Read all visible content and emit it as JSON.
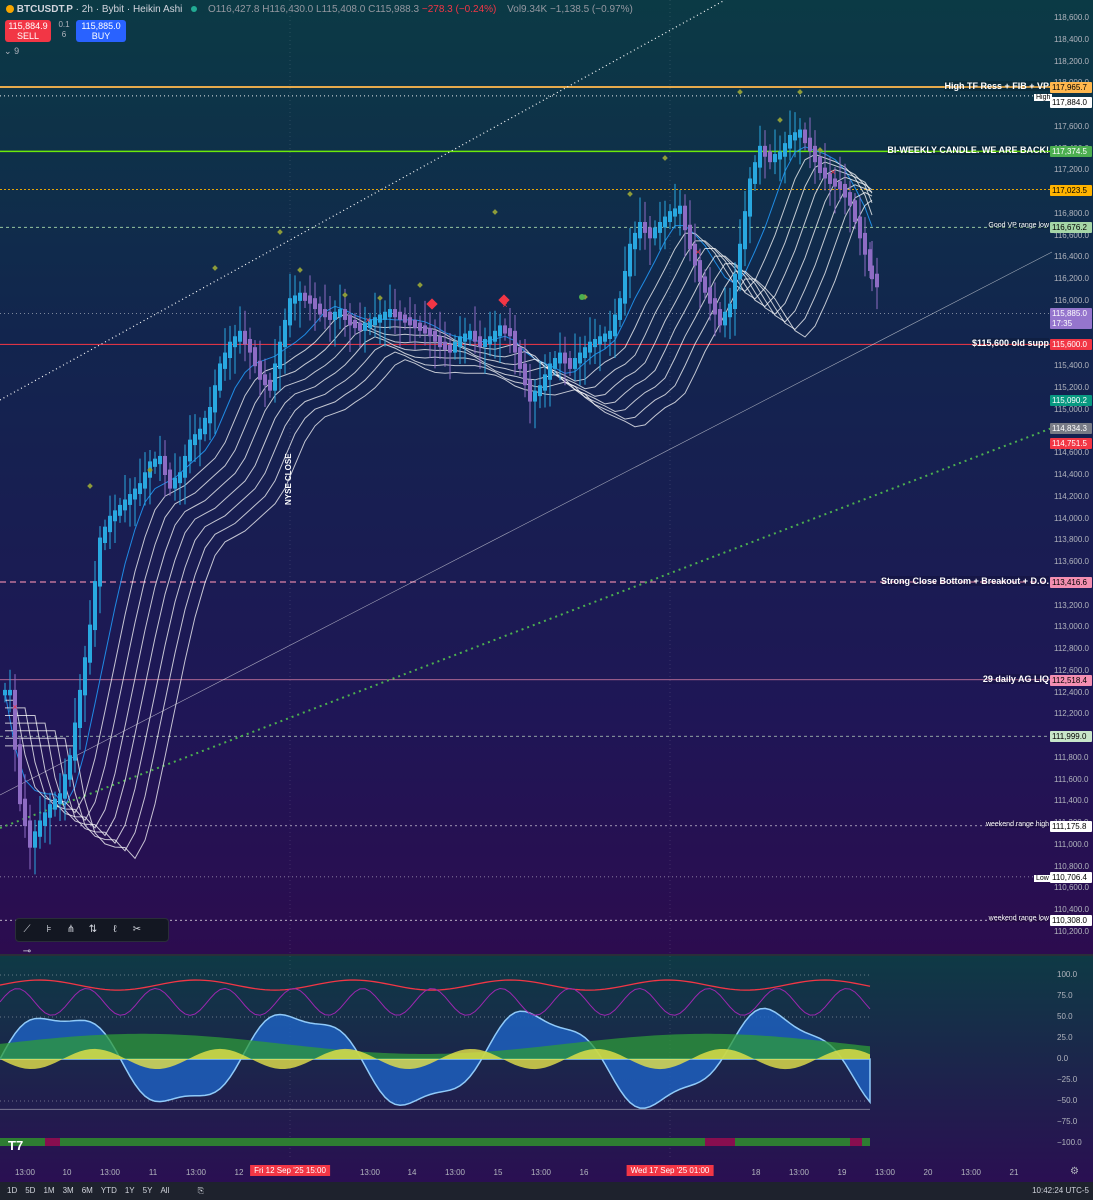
{
  "header": {
    "symbol": "BTCUSDT.P",
    "interval": "2h",
    "exchange": "Bybit",
    "chart_style": "Heikin Ashi",
    "ohlc_text": "O116,427.8 H116,430.0 L115,408.0 C115,988.3",
    "change_text": "−278.3 (−0.24%)",
    "volume_text": "Vol9.34K −1,138.5 (−0.97%)"
  },
  "trade": {
    "sell_price": "115,884.9",
    "sell_label": "SELL",
    "buy_price": "115,885.0",
    "buy_label": "BUY",
    "spread_top": "0.1",
    "spread_bottom": "6",
    "indicator_count": "9"
  },
  "price_axis": [
    "118,600.0",
    "118,400.0",
    "118,200.0",
    "118,000.0",
    "117,600.0",
    "117,400.0",
    "117,200.0",
    "116,800.0",
    "116,400.0",
    "116,200.0",
    "116,000.0",
    "115,400.0",
    "115,200.0",
    "114,600.0",
    "114,400.0",
    "114,200.0",
    "114,000.0",
    "113,800.0",
    "113,600.0",
    "113,200.0",
    "113,000.0",
    "112,800.0",
    "112,600.0",
    "112,400.0",
    "112,200.0",
    "111,800.0",
    "111,600.0",
    "111,400.0",
    "111,200.0",
    "111,000.0",
    "110,800.0",
    "110,600.0",
    "110,400.0",
    "110,200.0",
    "115,000.0",
    "116,600.0"
  ],
  "price_tags": [
    {
      "value": "117,965.7",
      "color": "#ffb74d",
      "text_color": "#000"
    },
    {
      "value": "117,884.0",
      "color": "#ffffff",
      "text_color": "#000"
    },
    {
      "value": "117,374.5",
      "color": "#4caf50",
      "text_color": "#fff"
    },
    {
      "value": "117,023.5",
      "color": "#ffb300",
      "text_color": "#000"
    },
    {
      "value": "116,676.2",
      "color": "#a5d6a7",
      "text_color": "#000"
    },
    {
      "value": "115,885.0",
      "color": "#9575cd",
      "text_color": "#fff"
    },
    {
      "value": "17:35",
      "color": "#9575cd",
      "text_color": "#fff"
    },
    {
      "value": "115,600.0",
      "color": "#f23645",
      "text_color": "#fff"
    },
    {
      "value": "115,090.2",
      "color": "#089981",
      "text_color": "#fff"
    },
    {
      "value": "114,834.3",
      "color": "#787b86",
      "text_color": "#fff"
    },
    {
      "value": "114,751.5",
      "color": "#f23645",
      "text_color": "#fff"
    },
    {
      "value": "113,416.6",
      "color": "#f48fb1",
      "text_color": "#000"
    },
    {
      "value": "112,518.4",
      "color": "#f48fb1",
      "text_color": "#000"
    },
    {
      "value": "111,999.0",
      "color": "#c8e6c9",
      "text_color": "#000"
    },
    {
      "value": "111,175.8",
      "color": "#ffffff",
      "text_color": "#000"
    },
    {
      "value": "110,706.4",
      "color": "#ffffff",
      "text_color": "#000"
    },
    {
      "value": "110,308.0",
      "color": "#ffffff",
      "text_color": "#000"
    }
  ],
  "high_label": "High",
  "low_label": "Low",
  "annotations": [
    {
      "text": "High TF Ress + FIB + VP",
      "small": false
    },
    {
      "text": "BI-WEEKLY CANDLE. WE ARE BACK!",
      "small": false
    },
    {
      "text": "Good VP range low",
      "small": true
    },
    {
      "text": "$115,600 old supp",
      "small": false
    },
    {
      "text": "Strong Close Bottom + Breakout + D.O.",
      "small": false
    },
    {
      "text": "29 daily AG LIQ",
      "small": false
    },
    {
      "text": "weekend range high",
      "small": true
    },
    {
      "text": "weekend range low",
      "small": true
    }
  ],
  "vertical_label": "NYSE CLOSE",
  "osc_axis": [
    "100.0",
    "75.0",
    "50.0",
    "25.0",
    "0.0",
    "−25.0",
    "−50.0",
    "−75.0",
    "−100.0"
  ],
  "time_axis": [
    "13:00",
    "10",
    "13:00",
    "11",
    "13:00",
    "12",
    "13:00",
    "14",
    "13:00",
    "15",
    "13:00",
    "16",
    "18",
    "13:00",
    "19",
    "13:00",
    "20",
    "13:00",
    "21"
  ],
  "time_highlights": [
    "Fri 12 Sep '25   15:00",
    "Wed 17 Sep '25   01:00"
  ],
  "ranges": [
    "1D",
    "5D",
    "1M",
    "3M",
    "6M",
    "YTD",
    "1Y",
    "5Y",
    "All"
  ],
  "clock": "10:42:24 UTC-5",
  "toolbar_icons": [
    "trendline-icon",
    "fib-icon",
    "pattern-icon",
    "position-icon",
    "brush-icon",
    "text-icon",
    "horizontal-line-icon"
  ],
  "colors": {
    "bg_top": "#0a3a44",
    "bg_mid": "#151b4a",
    "bg_bottom": "#2b0e52",
    "candle": "#29a8e0",
    "candle_down": "#8e6cc4",
    "ribbon": "#ffffff"
  }
}
